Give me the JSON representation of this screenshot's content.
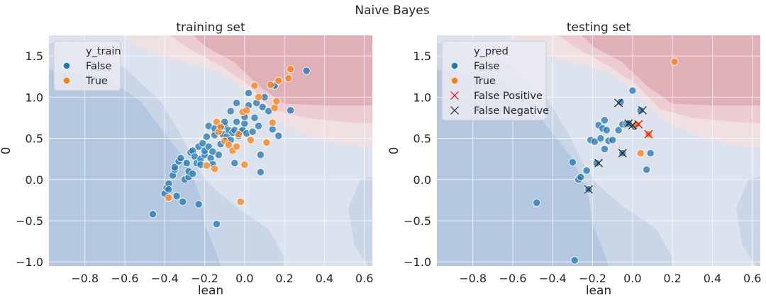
{
  "figure": {
    "title": "Naive Bayes"
  },
  "colors": {
    "false_marker": "#1f77b4",
    "true_marker": "#ff7f0e",
    "fp_marker": "#ff0000",
    "fn_marker": "#262626",
    "plot_bg": "#eaeaf2",
    "grid": "#ffffff"
  },
  "chart_data": [
    {
      "type": "scatter",
      "title": "training set",
      "xlabel": "lean",
      "ylabel": "0",
      "xlim": [
        -0.98,
        0.64
      ],
      "ylim": [
        -1.05,
        1.75
      ],
      "xticks": [
        -0.8,
        -0.6,
        -0.4,
        -0.2,
        0.0,
        0.2,
        0.4,
        0.6
      ],
      "xtick_labels": [
        "−0.8",
        "−0.6",
        "−0.4",
        "−0.2",
        "0.0",
        "0.2",
        "0.4",
        "0.6"
      ],
      "yticks": [
        -1.0,
        -0.5,
        0.0,
        0.5,
        1.0,
        1.5
      ],
      "ytick_labels": [
        "−1.0",
        "−0.5",
        "0.0",
        "0.5",
        "1.0",
        "1.5"
      ],
      "grid": true,
      "background": "decision-boundary contours (blue = False, red = True)",
      "legend": {
        "position": "upper-left",
        "title": "y_train",
        "entries": [
          {
            "label": "False",
            "marker": "dot",
            "color": "#1f77b4"
          },
          {
            "label": "True",
            "marker": "dot",
            "color": "#ff7f0e"
          }
        ]
      },
      "series": [
        {
          "name": "False",
          "color": "#1f77b4",
          "points": [
            [
              -0.46,
              -0.42
            ],
            [
              -0.4,
              -0.17
            ],
            [
              -0.39,
              -0.1
            ],
            [
              -0.38,
              -0.05
            ],
            [
              -0.38,
              -0.12
            ],
            [
              -0.36,
              0.05
            ],
            [
              -0.35,
              0.12
            ],
            [
              -0.35,
              0.15
            ],
            [
              -0.34,
              -0.2
            ],
            [
              -0.33,
              0.22
            ],
            [
              -0.32,
              0.26
            ],
            [
              -0.31,
              -0.27
            ],
            [
              -0.3,
              0.0
            ],
            [
              -0.29,
              0.2
            ],
            [
              -0.28,
              0.03
            ],
            [
              -0.28,
              0.1
            ],
            [
              -0.27,
              0.33
            ],
            [
              -0.26,
              0.35
            ],
            [
              -0.26,
              0.07
            ],
            [
              -0.25,
              0.28
            ],
            [
              -0.24,
              0.2
            ],
            [
              -0.23,
              0.4
            ],
            [
              -0.23,
              -0.3
            ],
            [
              -0.22,
              0.25
            ],
            [
              -0.22,
              0.18
            ],
            [
              -0.21,
              0.44
            ],
            [
              -0.2,
              0.3
            ],
            [
              -0.2,
              0.35
            ],
            [
              -0.19,
              0.52
            ],
            [
              -0.18,
              0.4
            ],
            [
              -0.18,
              0.65
            ],
            [
              -0.17,
              0.26
            ],
            [
              -0.16,
              0.34
            ],
            [
              -0.16,
              0.19
            ],
            [
              -0.15,
              0.54
            ],
            [
              -0.15,
              0.62
            ],
            [
              -0.14,
              -0.54
            ],
            [
              -0.13,
              0.3
            ],
            [
              -0.12,
              0.43
            ],
            [
              -0.12,
              0.62
            ],
            [
              -0.11,
              0.55
            ],
            [
              -0.1,
              0.65
            ],
            [
              -0.1,
              0.7
            ],
            [
              -0.09,
              0.52
            ],
            [
              -0.08,
              0.6
            ],
            [
              -0.07,
              0.48
            ],
            [
              -0.07,
              0.83
            ],
            [
              -0.06,
              0.57
            ],
            [
              -0.05,
              0.2
            ],
            [
              -0.05,
              0.6
            ],
            [
              -0.04,
              0.7
            ],
            [
              -0.04,
              0.93
            ],
            [
              -0.03,
              0.53
            ],
            [
              -0.02,
              0.58
            ],
            [
              -0.01,
              0.6
            ],
            [
              0.0,
              0.68
            ],
            [
              0.0,
              0.76
            ],
            [
              0.01,
              0.56
            ],
            [
              0.02,
              0.9
            ],
            [
              0.02,
              1.05
            ],
            [
              0.04,
              0.58
            ],
            [
              0.05,
              0.75
            ],
            [
              0.06,
              0.93
            ],
            [
              0.07,
              0.65
            ],
            [
              0.08,
              0.3
            ],
            [
              0.08,
              0.09
            ],
            [
              0.09,
              0.88
            ],
            [
              0.1,
              1.0
            ],
            [
              0.12,
              0.83
            ],
            [
              0.14,
              0.61
            ],
            [
              0.15,
              1.14
            ],
            [
              0.17,
              0.53
            ],
            [
              0.23,
              0.84
            ],
            [
              0.31,
              1.32
            ]
          ]
        },
        {
          "name": "True",
          "color": "#ff7f0e",
          "points": [
            [
              -0.38,
              -0.22
            ],
            [
              -0.19,
              0.17
            ],
            [
              -0.15,
              0.13
            ],
            [
              -0.14,
              0.7
            ],
            [
              -0.13,
              0.58
            ],
            [
              -0.12,
              0.64
            ],
            [
              -0.1,
              0.47
            ],
            [
              -0.08,
              0.42
            ],
            [
              -0.06,
              0.35
            ],
            [
              -0.04,
              0.4
            ],
            [
              -0.03,
              0.55
            ],
            [
              -0.02,
              -0.27
            ],
            [
              -0.01,
              0.82
            ],
            [
              0.0,
              0.18
            ],
            [
              0.01,
              0.84
            ],
            [
              0.03,
              0.48
            ],
            [
              0.05,
              1.14
            ],
            [
              0.07,
              1.0
            ],
            [
              0.11,
              0.45
            ],
            [
              0.13,
              1.15
            ],
            [
              0.14,
              0.69
            ],
            [
              0.15,
              0.87
            ],
            [
              0.16,
              0.95
            ],
            [
              0.17,
              1.2
            ],
            [
              0.22,
              1.23
            ],
            [
              0.23,
              1.34
            ]
          ]
        }
      ]
    },
    {
      "type": "scatter",
      "title": "testing set",
      "xlabel": "lean",
      "ylabel": "0",
      "xlim": [
        -0.98,
        0.64
      ],
      "ylim": [
        -1.05,
        1.75
      ],
      "xticks": [
        -0.8,
        -0.6,
        -0.4,
        -0.2,
        0.0,
        0.2,
        0.4,
        0.6
      ],
      "xtick_labels": [
        "−0.8",
        "−0.6",
        "−0.4",
        "−0.2",
        "0.0",
        "0.2",
        "0.4",
        "0.6"
      ],
      "yticks": [
        -1.0,
        -0.5,
        0.0,
        0.5,
        1.0,
        1.5
      ],
      "ytick_labels": [
        "−1.0",
        "−0.5",
        "0.0",
        "0.5",
        "1.0",
        "1.5"
      ],
      "grid": true,
      "background": "decision-boundary contours (blue = False, red = True)",
      "legend": {
        "position": "upper-left",
        "title": "y_pred",
        "entries": [
          {
            "label": "False",
            "marker": "dot",
            "color": "#1f77b4"
          },
          {
            "label": "True",
            "marker": "dot",
            "color": "#ff7f0e"
          },
          {
            "label": "False Positive",
            "marker": "x",
            "color": "#ff0000"
          },
          {
            "label": "False Negative",
            "marker": "x",
            "color": "#262626"
          }
        ]
      },
      "series": [
        {
          "name": "False",
          "color": "#1f77b4",
          "points": [
            [
              -0.48,
              -0.28
            ],
            [
              -0.29,
              -0.98
            ],
            [
              -0.3,
              0.21
            ],
            [
              -0.27,
              0.0
            ],
            [
              -0.26,
              0.03
            ],
            [
              -0.23,
              0.11
            ],
            [
              -0.21,
              0.48
            ],
            [
              -0.19,
              0.46
            ],
            [
              -0.18,
              0.2
            ],
            [
              -0.17,
              0.66
            ],
            [
              -0.16,
              0.5
            ],
            [
              -0.15,
              0.62
            ],
            [
              -0.14,
              0.72
            ],
            [
              -0.13,
              0.6
            ],
            [
              -0.12,
              0.47
            ],
            [
              -0.1,
              0.48
            ],
            [
              -0.07,
              0.6
            ],
            [
              -0.05,
              0.67
            ],
            [
              -0.03,
              0.68
            ],
            [
              -0.02,
              0.68
            ],
            [
              0.0,
              1.08
            ],
            [
              0.01,
              0.64
            ],
            [
              0.04,
              0.84
            ],
            [
              0.07,
              0.12
            ],
            [
              0.09,
              0.32
            ],
            [
              -0.14,
              0.37
            ],
            [
              -0.22,
              -0.12
            ],
            [
              -0.05,
              0.32
            ],
            [
              -0.06,
              0.94
            ]
          ]
        },
        {
          "name": "True",
          "color": "#ff7f0e",
          "points": [
            [
              0.04,
              0.32
            ],
            [
              0.02,
              0.67
            ],
            [
              0.08,
              0.55
            ],
            [
              0.21,
              1.43
            ]
          ]
        },
        {
          "name": "False Positive",
          "color": "#ff0000",
          "marker": "x",
          "points": [
            [
              0.08,
              0.55
            ],
            [
              0.03,
              0.67
            ]
          ]
        },
        {
          "name": "False Negative",
          "color": "#262626",
          "marker": "x",
          "points": [
            [
              -0.22,
              -0.12
            ],
            [
              -0.17,
              0.2
            ],
            [
              -0.07,
              0.93
            ],
            [
              -0.05,
              0.32
            ],
            [
              -0.02,
              0.68
            ],
            [
              0.0,
              0.66
            ],
            [
              0.05,
              0.84
            ]
          ]
        }
      ]
    }
  ]
}
